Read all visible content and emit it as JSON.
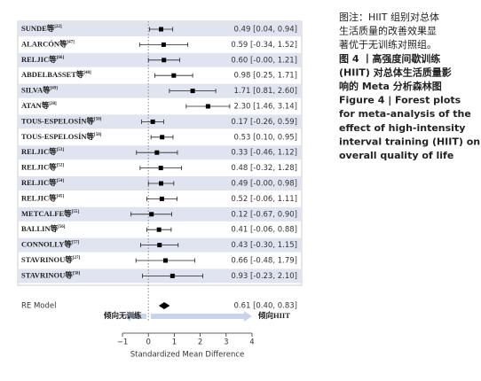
{
  "chart_data": {
    "type": "forest",
    "studies": [
      {
        "name": "SUNDE等",
        "ref": "[22]"
      },
      {
        "name": "ALARCÓN等",
        "ref": "[47]"
      },
      {
        "name": "RELJIC等",
        "ref": "[66]"
      },
      {
        "name": "ABDELBASSET等",
        "ref": "[48]"
      },
      {
        "name": "SILVA等",
        "ref": "[49]"
      },
      {
        "name": "ATAN等",
        "ref": "[28]"
      },
      {
        "name": "TOUS-ESPELOSÍN等",
        "ref": "[50]"
      },
      {
        "name": "TOUS-ESPELOSÍN等",
        "ref": "[50]"
      },
      {
        "name": "RELJIC等",
        "ref": "[53]"
      },
      {
        "name": "RELJIC等",
        "ref": "[52]"
      },
      {
        "name": "RELJIC等",
        "ref": "[54]"
      },
      {
        "name": "RELJIC等",
        "ref": "[45]"
      },
      {
        "name": "METCALFE等",
        "ref": "[55]"
      },
      {
        "name": "BALLIN等",
        "ref": "[56]"
      },
      {
        "name": "CONNOLLY等",
        "ref": "[57]"
      },
      {
        "name": "STAVRINOU等",
        "ref": "[27]"
      },
      {
        "name": "STAVRINOU等",
        "ref": "[58]"
      }
    ],
    "estimates": [
      0.49,
      0.59,
      0.6,
      0.98,
      1.71,
      2.3,
      0.17,
      0.53,
      0.33,
      0.48,
      0.49,
      0.52,
      0.12,
      0.41,
      0.43,
      0.66,
      0.93
    ],
    "ci_low": [
      0.04,
      -0.34,
      0,
      0.25,
      0.81,
      1.46,
      -0.26,
      0.1,
      -0.46,
      -0.32,
      0,
      -0.06,
      -0.67,
      -0.06,
      -0.3,
      -0.48,
      -0.23
    ],
    "ci_high": [
      0.94,
      1.52,
      1.21,
      1.71,
      2.6,
      3.14,
      0.59,
      0.95,
      1.12,
      1.28,
      0.98,
      1.11,
      0.9,
      0.88,
      1.15,
      1.79,
      2.1
    ],
    "value_labels": [
      "0.49 [0.04, 0.94]",
      "0.59 [-0.34, 1.52]",
      "0.60 [-0.00, 1.21]",
      "0.98 [0.25, 1.71]",
      "1.71 [0.81, 2.60]",
      "2.30 [1.46, 3.14]",
      "0.17 [-0.26, 0.59]",
      "0.53 [0.10, 0.95]",
      "0.33 [-0.46, 1.12]",
      "0.48 [-0.32, 1.28]",
      "0.49 [-0.00, 0.98]",
      "0.52 [-0.06, 1.11]",
      "0.12 [-0.67, 0.90]",
      "0.41 [-0.06, 0.88]",
      "0.43 [-0.30, 1.15]",
      "0.66 [-0.48, 1.79]",
      "0.93 [-0.23, 2.10]"
    ],
    "summary": {
      "name": "RE Model",
      "estimate": 0.61,
      "ci_low": 0.4,
      "ci_high": 0.83,
      "value_label": "0.61 [0.40, 0.83]"
    },
    "left_arrow_label": "倾向无训练",
    "right_arrow_label": "倾向HIIT",
    "xlabel": "Standardized Mean Difference",
    "xlim": [
      -1,
      4
    ],
    "xticks": [
      {
        "value": -1,
        "label": "−1"
      },
      0,
      1,
      2,
      3,
      4
    ]
  },
  "caption": {
    "note": [
      "图注：HIIT 组别对总体",
      "生活质量的改善效果显",
      "著优于无训练对照组。"
    ],
    "title_zh": [
      "图 4 丨高强度间歇训练",
      "(HIIT) 对总体生活质量影",
      "响的 Meta 分析森林图"
    ],
    "title_en": [
      "Figure 4  |  Forest plots",
      "for meta-analysis of the",
      "effect of high-intensity",
      "interval training (HIIT) on",
      "overall quality of life"
    ]
  }
}
